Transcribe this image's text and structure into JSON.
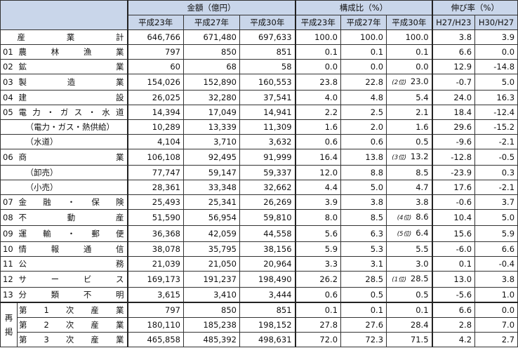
{
  "headers": {
    "group_amount": "金額（億円）",
    "group_ratio": "構成比（%）",
    "group_growth": "伸び率（%）",
    "sub": [
      "平成23年",
      "平成27年",
      "平成30年",
      "平成23年",
      "平成27年",
      "平成30年",
      "H27/H23",
      "H30/H27"
    ]
  },
  "rows": [
    {
      "code": "",
      "label": [
        "産",
        "業",
        "計"
      ],
      "vals": [
        "646,766",
        "671,480",
        "697,633",
        "100.0",
        "100.0",
        "100.0",
        "3.8",
        "3.9"
      ],
      "rank": ""
    },
    {
      "code": "01",
      "label": [
        "農",
        "林",
        "漁",
        "業"
      ],
      "vals": [
        "797",
        "850",
        "851",
        "0.1",
        "0.1",
        "0.1",
        "6.6",
        "0.0"
      ],
      "rank": ""
    },
    {
      "code": "02",
      "label": [
        "鉱",
        "業"
      ],
      "vals": [
        "60",
        "68",
        "58",
        "0.0",
        "0.0",
        "0.0",
        "12.9",
        "-14.8"
      ],
      "rank": ""
    },
    {
      "code": "03",
      "label": [
        "製",
        "造",
        "業"
      ],
      "vals": [
        "154,026",
        "152,890",
        "160,553",
        "23.8",
        "22.8",
        "23.0",
        "-0.7",
        "5.0"
      ],
      "rank": "(2位)"
    },
    {
      "code": "04",
      "label": [
        "建",
        "設"
      ],
      "vals": [
        "26,025",
        "32,280",
        "37,541",
        "4.0",
        "4.8",
        "5.4",
        "24.0",
        "16.3"
      ],
      "rank": ""
    },
    {
      "code": "05",
      "label": [
        "電",
        "力",
        "・",
        "ガ",
        "ス",
        "・",
        "水",
        "道"
      ],
      "vals": [
        "14,394",
        "17,049",
        "14,941",
        "2.2",
        "2.5",
        "2.1",
        "18.4",
        "-12.4"
      ],
      "rank": ""
    },
    {
      "code": "",
      "label_text": "（電力・ガス・熱供給）",
      "vals": [
        "10,289",
        "13,339",
        "11,309",
        "1.6",
        "2.0",
        "1.6",
        "29.6",
        "-15.2"
      ],
      "rank": ""
    },
    {
      "code": "",
      "label_text": "（水道）",
      "vals": [
        "4,104",
        "3,710",
        "3,632",
        "0.6",
        "0.6",
        "0.5",
        "-9.6",
        "-2.1"
      ],
      "rank": ""
    },
    {
      "code": "06",
      "label": [
        "商",
        "業"
      ],
      "vals": [
        "106,108",
        "92,495",
        "91,999",
        "16.4",
        "13.8",
        "13.2",
        "-12.8",
        "-0.5"
      ],
      "rank": "(3位)"
    },
    {
      "code": "",
      "label_text": "（卸売）",
      "vals": [
        "77,747",
        "59,147",
        "59,337",
        "12.0",
        "8.8",
        "8.5",
        "-23.9",
        "0.3"
      ],
      "rank": ""
    },
    {
      "code": "",
      "label_text": "（小売）",
      "vals": [
        "28,361",
        "33,348",
        "32,662",
        "4.4",
        "5.0",
        "4.7",
        "17.6",
        "-2.1"
      ],
      "rank": ""
    },
    {
      "code": "07",
      "label": [
        "金",
        "融",
        "・",
        "保",
        "険"
      ],
      "vals": [
        "25,493",
        "25,341",
        "26,269",
        "3.9",
        "3.8",
        "3.8",
        "-0.6",
        "3.7"
      ],
      "rank": ""
    },
    {
      "code": "08",
      "label": [
        "不",
        "動",
        "産"
      ],
      "vals": [
        "51,590",
        "56,954",
        "59,810",
        "8.0",
        "8.5",
        "8.6",
        "10.4",
        "5.0"
      ],
      "rank": "(4位)"
    },
    {
      "code": "09",
      "label": [
        "運",
        "輸",
        "・",
        "郵",
        "便"
      ],
      "vals": [
        "36,368",
        "42,059",
        "44,558",
        "5.6",
        "6.3",
        "6.4",
        "15.6",
        "5.9"
      ],
      "rank": "(5位)"
    },
    {
      "code": "10",
      "label": [
        "情",
        "報",
        "通",
        "信"
      ],
      "vals": [
        "38,078",
        "35,795",
        "38,156",
        "5.9",
        "5.3",
        "5.5",
        "-6.0",
        "6.6"
      ],
      "rank": ""
    },
    {
      "code": "11",
      "label": [
        "公",
        "務"
      ],
      "vals": [
        "21,039",
        "21,050",
        "20,964",
        "3.3",
        "3.1",
        "3.0",
        "0.1",
        "-0.4"
      ],
      "rank": ""
    },
    {
      "code": "12",
      "label": [
        "サ",
        "ー",
        "ビ",
        "ス"
      ],
      "vals": [
        "169,173",
        "191,237",
        "198,490",
        "26.2",
        "28.5",
        "28.5",
        "13.0",
        "3.8"
      ],
      "rank": "(1位)"
    },
    {
      "code": "13",
      "label": [
        "分",
        "類",
        "不",
        "明"
      ],
      "vals": [
        "3,615",
        "3,410",
        "3,444",
        "0.6",
        "0.5",
        "0.5",
        "-5.6",
        "1.0"
      ],
      "rank": ""
    }
  ],
  "saikei": {
    "side": [
      "再",
      "掲"
    ],
    "rows": [
      {
        "label": [
          "第",
          "1",
          "次",
          "産",
          "業"
        ],
        "vals": [
          "797",
          "850",
          "851",
          "0.1",
          "0.1",
          "0.1",
          "6.6",
          "0.0"
        ]
      },
      {
        "label": [
          "第",
          "2",
          "次",
          "産",
          "業"
        ],
        "vals": [
          "180,110",
          "185,238",
          "198,152",
          "27.8",
          "27.6",
          "28.4",
          "2.8",
          "7.0"
        ]
      },
      {
        "label": [
          "第",
          "3",
          "次",
          "産",
          "業"
        ],
        "vals": [
          "465,858",
          "485,392",
          "498,631",
          "72.0",
          "72.3",
          "71.5",
          "4.2",
          "2.7"
        ]
      }
    ]
  }
}
